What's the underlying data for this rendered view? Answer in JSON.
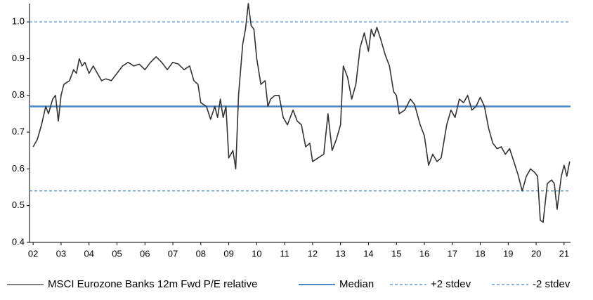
{
  "chart_data": {
    "type": "line",
    "series": [
      {
        "name": "MSCI Eurozone Banks 12m Fwd P/E relative",
        "color": "#333333",
        "x": [
          2002.0,
          2002.15,
          2002.3,
          2002.45,
          2002.55,
          2002.7,
          2002.8,
          2002.9,
          2003.0,
          2003.1,
          2003.3,
          2003.45,
          2003.55,
          2003.65,
          2003.75,
          2003.85,
          2004.0,
          2004.15,
          2004.3,
          2004.45,
          2004.6,
          2004.8,
          2005.0,
          2005.2,
          2005.4,
          2005.6,
          2005.8,
          2006.0,
          2006.2,
          2006.4,
          2006.6,
          2006.8,
          2007.0,
          2007.2,
          2007.4,
          2007.6,
          2007.75,
          2007.9,
          2008.0,
          2008.2,
          2008.35,
          2008.5,
          2008.6,
          2008.7,
          2008.8,
          2008.9,
          2009.0,
          2009.15,
          2009.25,
          2009.35,
          2009.5,
          2009.6,
          2009.7,
          2009.8,
          2009.9,
          2010.0,
          2010.15,
          2010.3,
          2010.4,
          2010.5,
          2010.65,
          2010.8,
          2010.95,
          2011.1,
          2011.3,
          2011.45,
          2011.6,
          2011.75,
          2011.9,
          2012.0,
          2012.2,
          2012.4,
          2012.55,
          2012.7,
          2012.85,
          2013.0,
          2013.1,
          2013.25,
          2013.4,
          2013.55,
          2013.7,
          2013.85,
          2014.0,
          2014.1,
          2014.2,
          2014.3,
          2014.45,
          2014.6,
          2014.75,
          2014.9,
          2015.0,
          2015.1,
          2015.3,
          2015.5,
          2015.65,
          2015.85,
          2016.0,
          2016.15,
          2016.3,
          2016.45,
          2016.6,
          2016.8,
          2016.95,
          2017.1,
          2017.25,
          2017.4,
          2017.55,
          2017.7,
          2017.85,
          2018.0,
          2018.15,
          2018.3,
          2018.45,
          2018.6,
          2018.75,
          2018.9,
          2019.05,
          2019.2,
          2019.35,
          2019.5,
          2019.65,
          2019.8,
          2019.95,
          2020.05,
          2020.15,
          2020.25,
          2020.4,
          2020.55,
          2020.65,
          2020.75,
          2020.9,
          2021.0,
          2021.1,
          2021.2
        ],
        "values": [
          0.66,
          0.68,
          0.72,
          0.77,
          0.75,
          0.79,
          0.8,
          0.73,
          0.8,
          0.83,
          0.84,
          0.87,
          0.86,
          0.9,
          0.88,
          0.89,
          0.86,
          0.88,
          0.86,
          0.84,
          0.845,
          0.84,
          0.86,
          0.88,
          0.89,
          0.88,
          0.885,
          0.87,
          0.89,
          0.905,
          0.89,
          0.87,
          0.89,
          0.885,
          0.87,
          0.88,
          0.84,
          0.83,
          0.78,
          0.77,
          0.735,
          0.77,
          0.74,
          0.79,
          0.74,
          0.77,
          0.63,
          0.65,
          0.6,
          0.8,
          0.94,
          0.98,
          1.05,
          0.99,
          0.98,
          0.9,
          0.83,
          0.84,
          0.77,
          0.79,
          0.8,
          0.8,
          0.74,
          0.72,
          0.76,
          0.73,
          0.72,
          0.66,
          0.67,
          0.62,
          0.63,
          0.64,
          0.75,
          0.65,
          0.68,
          0.72,
          0.88,
          0.85,
          0.79,
          0.83,
          0.93,
          0.97,
          0.92,
          0.98,
          0.96,
          0.985,
          0.95,
          0.91,
          0.88,
          0.81,
          0.8,
          0.75,
          0.76,
          0.79,
          0.775,
          0.72,
          0.69,
          0.61,
          0.64,
          0.62,
          0.63,
          0.72,
          0.76,
          0.74,
          0.79,
          0.78,
          0.8,
          0.76,
          0.77,
          0.795,
          0.77,
          0.71,
          0.67,
          0.655,
          0.66,
          0.64,
          0.655,
          0.62,
          0.585,
          0.54,
          0.58,
          0.6,
          0.59,
          0.58,
          0.46,
          0.455,
          0.56,
          0.57,
          0.56,
          0.49,
          0.58,
          0.61,
          0.58,
          0.62
        ]
      }
    ],
    "reference_lines": [
      {
        "name": "Median",
        "value": 0.77,
        "color": "#4a86c5",
        "dashed": false
      },
      {
        "name": "+2 stdev",
        "value": 1.0,
        "color": "#4a86c5",
        "dashed": true
      },
      {
        "name": "-2 stdev",
        "value": 0.54,
        "color": "#4a86c5",
        "dashed": true
      }
    ],
    "xlim": [
      2001.87,
      2021.23
    ],
    "xticks": [
      {
        "value": 2002,
        "label": "02"
      },
      {
        "value": 2003,
        "label": "03"
      },
      {
        "value": 2004,
        "label": "04"
      },
      {
        "value": 2005,
        "label": "05"
      },
      {
        "value": 2006,
        "label": "06"
      },
      {
        "value": 2007,
        "label": "07"
      },
      {
        "value": 2008,
        "label": "08"
      },
      {
        "value": 2009,
        "label": "09"
      },
      {
        "value": 2010,
        "label": "10"
      },
      {
        "value": 2011,
        "label": "11"
      },
      {
        "value": 2012,
        "label": "12"
      },
      {
        "value": 2013,
        "label": "13"
      },
      {
        "value": 2014,
        "label": "14"
      },
      {
        "value": 2015,
        "label": "15"
      },
      {
        "value": 2016,
        "label": "16"
      },
      {
        "value": 2017,
        "label": "17"
      },
      {
        "value": 2018,
        "label": "18"
      },
      {
        "value": 2019,
        "label": "19"
      },
      {
        "value": 2020,
        "label": "20"
      },
      {
        "value": 2021,
        "label": "21"
      }
    ],
    "ylim": [
      0.4,
      1.05
    ],
    "yticks": [
      0.4,
      0.5,
      0.6,
      0.7,
      0.8,
      0.9,
      {
        "value": 1,
        "label": "1.0"
      }
    ],
    "grid": false,
    "legend": "bottom"
  }
}
